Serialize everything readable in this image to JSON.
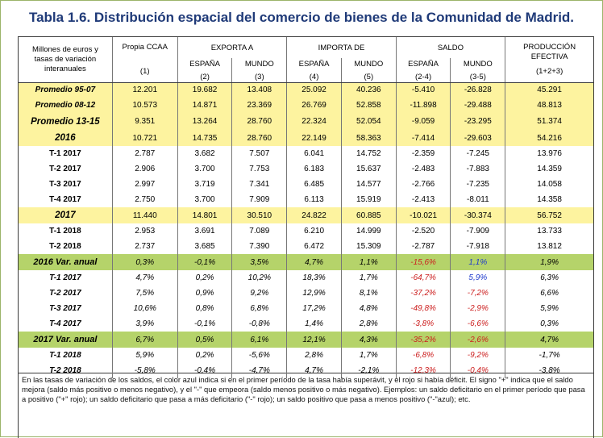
{
  "title": "Tabla 1.6. Distribución espacial del comercio de bienes de la Comunidad de Madrid.",
  "header": {
    "row_label": [
      "Millones de euros y",
      "tasas de variación",
      "interanuales"
    ],
    "propia": "Propia CCAA",
    "propia_n": "(1)",
    "exporta": "EXPORTA A",
    "importa": "IMPORTA DE",
    "saldo": "SALDO",
    "produccion": [
      "PRODUCCIÓN",
      "EFECTIVA"
    ],
    "produccion_n": "(1+2+3)",
    "sub": [
      {
        "label": "ESPAÑA",
        "n": "(2)"
      },
      {
        "label": "MUNDO",
        "n": "(3)"
      },
      {
        "label": "ESPAÑA",
        "n": "(4)"
      },
      {
        "label": "MUNDO",
        "n": "(5)"
      },
      {
        "label": "ESPAÑA",
        "n": "(2-4)"
      },
      {
        "label": "MUNDO",
        "n": "(3-5)"
      }
    ]
  },
  "rows": [
    {
      "label": "Promedio 95-07",
      "style": "hl-label-it",
      "values": [
        "12.201",
        "19.682",
        "13.408",
        "25.092",
        "40.236",
        "-5.410",
        "-26.828",
        "45.291"
      ]
    },
    {
      "label": "Promedio 08-12",
      "style": "hl-label-it",
      "values": [
        "10.573",
        "14.871",
        "23.369",
        "26.769",
        "52.858",
        "-11.898",
        "-29.488",
        "48.813"
      ]
    },
    {
      "label": "Promedio 13-15",
      "style": "hl-label-it-big",
      "values": [
        "9.351",
        "13.264",
        "28.760",
        "22.324",
        "52.054",
        "-9.059",
        "-23.295",
        "51.374"
      ]
    },
    {
      "label": "2016",
      "style": "hl-big",
      "values": [
        "10.721",
        "14.735",
        "28.760",
        "22.149",
        "58.363",
        "-7.414",
        "-29.603",
        "54.216"
      ]
    },
    {
      "label": "T-1 2017",
      "style": "plain",
      "values": [
        "2.787",
        "3.682",
        "7.507",
        "6.041",
        "14.752",
        "-2.359",
        "-7.245",
        "13.976"
      ]
    },
    {
      "label": "T-2 2017",
      "style": "plain",
      "values": [
        "2.906",
        "3.700",
        "7.753",
        "6.183",
        "15.637",
        "-2.483",
        "-7.883",
        "14.359"
      ]
    },
    {
      "label": "T-3 2017",
      "style": "plain",
      "values": [
        "2.997",
        "3.719",
        "7.341",
        "6.485",
        "14.577",
        "-2.766",
        "-7.235",
        "14.058"
      ]
    },
    {
      "label": "T-4 2017",
      "style": "plain",
      "values": [
        "2.750",
        "3.700",
        "7.909",
        "6.113",
        "15.919",
        "-2.413",
        "-8.011",
        "14.358"
      ]
    },
    {
      "label": "2017",
      "style": "hl-big",
      "values": [
        "11.440",
        "14.801",
        "30.510",
        "24.822",
        "60.885",
        "-10.021",
        "-30.374",
        "56.752"
      ]
    },
    {
      "label": "T-1 2018",
      "style": "plain",
      "values": [
        "2.953",
        "3.691",
        "7.089",
        "6.210",
        "14.999",
        "-2.520",
        "-7.909",
        "13.733"
      ]
    },
    {
      "label": "T-2 2018",
      "style": "plain",
      "values": [
        "2.737",
        "3.685",
        "7.390",
        "6.472",
        "15.309",
        "-2.787",
        "-7.918",
        "13.812"
      ]
    },
    {
      "label": "2016 Var. anual",
      "style": "gr",
      "values": [
        "0,3%",
        "-0,1%",
        "3,5%",
        "4,7%",
        "1,1%",
        "-15,6%",
        "1,1%",
        "1,9%"
      ],
      "colors": [
        "",
        "",
        "",
        "",
        "",
        "neg",
        "pos",
        ""
      ]
    },
    {
      "label": "T-1 2017",
      "style": "ital",
      "values": [
        "4,7%",
        "0,2%",
        "10,2%",
        "18,3%",
        "1,7%",
        "-64,7%",
        "5,9%",
        "6,3%"
      ],
      "colors": [
        "",
        "",
        "",
        "",
        "",
        "neg",
        "pos",
        ""
      ]
    },
    {
      "label": "T-2 2017",
      "style": "ital",
      "values": [
        "7,5%",
        "0,9%",
        "9,2%",
        "12,9%",
        "8,1%",
        "-37,2%",
        "-7,2%",
        "6,6%"
      ],
      "colors": [
        "",
        "",
        "",
        "",
        "",
        "neg",
        "neg",
        ""
      ]
    },
    {
      "label": "T-3 2017",
      "style": "ital",
      "values": [
        "10,6%",
        "0,8%",
        "6,8%",
        "17,2%",
        "4,8%",
        "-49,8%",
        "-2,9%",
        "5,9%"
      ],
      "colors": [
        "",
        "",
        "",
        "",
        "",
        "neg",
        "neg",
        ""
      ]
    },
    {
      "label": "T-4 2017",
      "style": "ital",
      "values": [
        "3,9%",
        "-0,1%",
        "-0,8%",
        "1,4%",
        "2,8%",
        "-3,8%",
        "-6,6%",
        "0,3%"
      ],
      "colors": [
        "",
        "",
        "",
        "",
        "",
        "neg",
        "neg",
        ""
      ]
    },
    {
      "label": "2017 Var. anual",
      "style": "gr",
      "values": [
        "6,7%",
        "0,5%",
        "6,1%",
        "12,1%",
        "4,3%",
        "-35,2%",
        "-2,6%",
        "4,7%"
      ],
      "colors": [
        "",
        "",
        "",
        "",
        "",
        "neg",
        "neg",
        ""
      ]
    },
    {
      "label": "T-1 2018",
      "style": "ital",
      "values": [
        "5,9%",
        "0,2%",
        "-5,6%",
        "2,8%",
        "1,7%",
        "-6,8%",
        "-9,2%",
        "-1,7%"
      ],
      "colors": [
        "",
        "",
        "",
        "",
        "",
        "neg",
        "neg",
        ""
      ]
    },
    {
      "label": "T-2 2018",
      "style": "ital",
      "values": [
        "-5,8%",
        "-0,4%",
        "-4,7%",
        "4,7%",
        "-2,1%",
        "-12,3%",
        "-0,4%",
        "-3,8%"
      ],
      "colors": [
        "",
        "",
        "",
        "",
        "",
        "neg",
        "neg",
        ""
      ]
    }
  ],
  "note": "En las tasas de variación de los saldos, el color azul indica si en el primer período de la tasa había superávit, y el rojo si había déficit. El signo \"+\" indica que el saldo mejora (saldo más positivo o menos negativo), y el \"-\" que empeora (saldo menos positivo o más negativo). Ejemplos: un saldo deficitario en el primer período que pasa a positivo (\"+\" rojo); un saldo deficitario que pasa a más deficitario (\"-\" rojo); un saldo positivo que pasa a menos positivo (\"-\"azul); etc.",
  "colors": {
    "highlight": "#fdf39f",
    "green": "#b5d36a",
    "title": "#1f3a78",
    "negative": "#cc1f1f",
    "positive": "#1f3bcc"
  }
}
